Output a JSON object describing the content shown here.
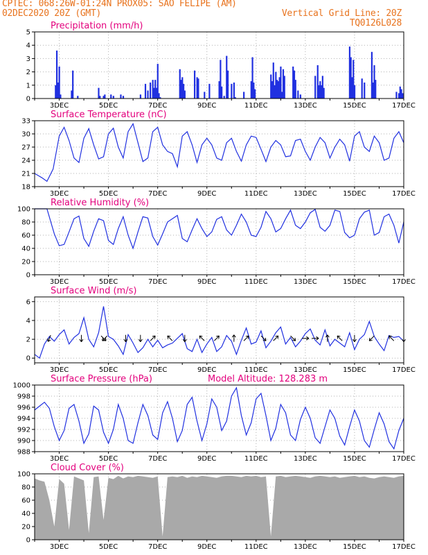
{
  "header": {
    "line1": "CPTEC:   068:26W-01:24N   PROX05: SAO FELIPE (AM)",
    "line2_left": "02DEC2020 20Z (GMT)",
    "line2_right": "Vertical Grid Line: 20Z",
    "line3_right": "TQ0126L028"
  },
  "colors": {
    "header": "#e8731e",
    "title": "#e3007d",
    "line": "#2030e0",
    "bar": "#2030e0",
    "cloud": "#a9a9a9"
  },
  "x_axis": {
    "start_day": 2,
    "end_day": 17,
    "tick_labels": [
      "3DEC",
      "5DEC",
      "7DEC",
      "9DEC",
      "11DEC",
      "13DEC",
      "15DEC",
      "17DEC"
    ]
  },
  "chart_data": [
    {
      "type": "bar",
      "title": "Precipitation (mm/h)",
      "ylim": [
        0,
        5
      ],
      "yticks": [
        0,
        1,
        2,
        3,
        4,
        5
      ],
      "x": [
        2.85,
        2.9,
        2.95,
        3.0,
        3.05,
        3.5,
        3.55,
        3.75,
        4.6,
        4.65,
        4.8,
        4.85,
        5.1,
        5.2,
        5.5,
        5.6,
        6.3,
        6.5,
        6.6,
        6.7,
        6.8,
        6.85,
        6.9,
        6.95,
        7.0,
        7.05,
        7.1,
        7.9,
        7.95,
        8.0,
        8.05,
        8.1,
        8.5,
        8.6,
        8.65,
        8.9,
        9.1,
        9.5,
        9.55,
        9.6,
        9.7,
        9.8,
        9.85,
        10.0,
        10.1,
        10.15,
        10.5,
        10.8,
        10.85,
        10.9,
        10.95,
        11.6,
        11.65,
        11.7,
        11.75,
        11.8,
        11.85,
        11.9,
        11.95,
        12.0,
        12.05,
        12.1,
        12.15,
        12.5,
        12.55,
        12.6,
        12.7,
        12.8,
        13.4,
        13.5,
        13.55,
        13.6,
        13.65,
        13.7,
        13.75,
        14.8,
        14.85,
        14.9,
        14.95,
        15.0,
        15.3,
        15.4,
        15.7,
        15.75,
        15.8,
        15.85,
        16.7,
        16.8,
        16.85,
        16.9,
        16.95
      ],
      "values": [
        1.0,
        3.6,
        1.2,
        2.4,
        0.3,
        0.6,
        2.1,
        0.2,
        0.8,
        0.2,
        0.2,
        0.3,
        0.3,
        0.2,
        0.3,
        0.2,
        0.3,
        1.1,
        0.6,
        1.2,
        1.4,
        0.8,
        1.4,
        0.8,
        2.6,
        0.4,
        0.1,
        2.2,
        1.4,
        1.6,
        1.1,
        0.6,
        2.1,
        1.6,
        1.5,
        0.5,
        1.1,
        1.3,
        2.9,
        0.9,
        0.2,
        3.2,
        2.1,
        1.1,
        1.2,
        0.1,
        0.5,
        1.3,
        3.1,
        1.2,
        0.7,
        1.8,
        1.3,
        2.7,
        1.0,
        2.0,
        1.4,
        1.3,
        1.6,
        2.4,
        0.5,
        2.2,
        1.7,
        2.4,
        2.1,
        1.4,
        0.6,
        0.3,
        1.7,
        2.5,
        1.0,
        1.3,
        1.0,
        1.7,
        0.8,
        3.9,
        3.1,
        1.6,
        2.9,
        1.0,
        1.5,
        1.2,
        3.5,
        1.2,
        2.5,
        1.4,
        0.5,
        0.4,
        0.9,
        0.7,
        0.4
      ]
    },
    {
      "type": "line",
      "title": "Surface Temperature (nC)",
      "ylim": [
        18,
        33
      ],
      "yticks": [
        18,
        21,
        24,
        27,
        30,
        33
      ],
      "x": [
        2.0,
        2.3,
        2.5,
        2.75,
        3.0,
        3.2,
        3.4,
        3.6,
        3.8,
        4.0,
        4.2,
        4.4,
        4.6,
        4.8,
        5.0,
        5.2,
        5.4,
        5.6,
        5.8,
        6.0,
        6.2,
        6.4,
        6.6,
        6.8,
        7.0,
        7.2,
        7.4,
        7.6,
        7.8,
        8.0,
        8.2,
        8.4,
        8.6,
        8.8,
        9.0,
        9.2,
        9.4,
        9.6,
        9.8,
        10.0,
        10.2,
        10.4,
        10.6,
        10.8,
        11.0,
        11.2,
        11.4,
        11.6,
        11.8,
        12.0,
        12.2,
        12.4,
        12.6,
        12.8,
        13.0,
        13.2,
        13.4,
        13.6,
        13.8,
        14.0,
        14.2,
        14.4,
        14.6,
        14.8,
        15.0,
        15.2,
        15.4,
        15.6,
        15.8,
        16.0,
        16.2,
        16.4,
        16.6,
        16.8,
        17.0
      ],
      "values": [
        21.0,
        20.0,
        19.2,
        22.0,
        29.5,
        31.5,
        28.5,
        24.5,
        23.5,
        29.0,
        31.2,
        27.5,
        24.3,
        24.8,
        30.0,
        31.3,
        27.0,
        24.5,
        30.5,
        32.3,
        28.0,
        23.7,
        24.5,
        30.5,
        31.5,
        27.5,
        26.0,
        25.5,
        22.5,
        29.5,
        30.5,
        27.5,
        23.5,
        27.5,
        29.0,
        27.5,
        24.5,
        24.0,
        28.0,
        29.0,
        26.0,
        23.8,
        27.5,
        29.5,
        29.2,
        26.5,
        23.7,
        27.0,
        28.5,
        27.5,
        24.8,
        25.0,
        28.5,
        28.8,
        26.0,
        24.0,
        27.0,
        29.2,
        28.0,
        24.5,
        27.0,
        28.8,
        27.5,
        23.8,
        29.5,
        30.5,
        27.0,
        26.0,
        29.5,
        28.0,
        24.0,
        24.5,
        29.0,
        30.5,
        28.0
      ]
    },
    {
      "type": "line",
      "title": "Relative Humidity (%)",
      "ylim": [
        0,
        100
      ],
      "yticks": [
        0,
        20,
        40,
        60,
        80,
        100
      ],
      "x": [
        2.0,
        2.3,
        2.5,
        2.8,
        3.0,
        3.2,
        3.4,
        3.6,
        3.8,
        4.0,
        4.2,
        4.4,
        4.6,
        4.8,
        5.0,
        5.2,
        5.4,
        5.6,
        5.8,
        6.0,
        6.2,
        6.4,
        6.6,
        6.8,
        7.0,
        7.2,
        7.4,
        7.6,
        7.8,
        8.0,
        8.2,
        8.4,
        8.6,
        8.8,
        9.0,
        9.2,
        9.4,
        9.6,
        9.8,
        10.0,
        10.2,
        10.4,
        10.6,
        10.8,
        11.0,
        11.2,
        11.4,
        11.6,
        11.8,
        12.0,
        12.2,
        12.4,
        12.6,
        12.8,
        13.0,
        13.2,
        13.4,
        13.6,
        13.8,
        14.0,
        14.2,
        14.4,
        14.6,
        14.8,
        15.0,
        15.2,
        15.4,
        15.6,
        15.8,
        16.0,
        16.2,
        16.4,
        16.6,
        16.8,
        17.0
      ],
      "values": [
        100,
        100,
        100,
        62,
        44,
        46,
        65,
        85,
        89,
        55,
        43,
        66,
        85,
        82,
        52,
        46,
        70,
        88,
        60,
        40,
        65,
        88,
        86,
        58,
        45,
        62,
        80,
        85,
        90,
        55,
        50,
        68,
        85,
        70,
        58,
        65,
        84,
        88,
        68,
        60,
        75,
        92,
        80,
        60,
        58,
        72,
        96,
        85,
        65,
        70,
        85,
        98,
        75,
        70,
        80,
        94,
        99,
        72,
        66,
        75,
        98,
        96,
        64,
        56,
        60,
        85,
        95,
        98,
        60,
        64,
        88,
        92,
        75,
        48,
        80
      ]
    },
    {
      "type": "line",
      "title": "Surface Wind (m/s)",
      "ylim": [
        -0.5,
        6.5
      ],
      "yticks": [
        0,
        2,
        4,
        6
      ],
      "x": [
        2.0,
        2.2,
        2.4,
        2.6,
        2.8,
        3.0,
        3.2,
        3.4,
        3.6,
        3.8,
        4.0,
        4.2,
        4.4,
        4.6,
        4.8,
        5.0,
        5.2,
        5.4,
        5.6,
        5.8,
        6.0,
        6.2,
        6.4,
        6.6,
        6.8,
        7.0,
        7.2,
        7.4,
        7.6,
        7.8,
        8.0,
        8.2,
        8.4,
        8.6,
        8.8,
        9.0,
        9.2,
        9.4,
        9.6,
        9.8,
        10.0,
        10.2,
        10.4,
        10.6,
        10.8,
        11.0,
        11.2,
        11.4,
        11.6,
        11.8,
        12.0,
        12.2,
        12.4,
        12.6,
        12.8,
        13.0,
        13.2,
        13.4,
        13.6,
        13.8,
        14.0,
        14.2,
        14.4,
        14.6,
        14.8,
        15.0,
        15.2,
        15.4,
        15.6,
        15.8,
        16.0,
        16.2,
        16.4,
        16.6,
        16.8,
        17.0
      ],
      "values": [
        0.4,
        0.0,
        1.5,
        2.3,
        1.8,
        2.5,
        3.0,
        1.5,
        2.2,
        2.6,
        4.3,
        2.0,
        1.2,
        2.7,
        5.5,
        2.3,
        2.0,
        1.3,
        0.4,
        2.5,
        1.6,
        0.6,
        1.1,
        2.0,
        1.2,
        1.9,
        1.1,
        1.4,
        1.6,
        2.1,
        2.6,
        1.0,
        0.7,
        2.0,
        0.6,
        1.5,
        2.2,
        0.7,
        1.2,
        2.4,
        1.8,
        0.4,
        1.9,
        3.2,
        1.5,
        1.7,
        2.9,
        1.1,
        1.8,
        2.7,
        3.3,
        1.5,
        2.2,
        1.2,
        1.8,
        2.6,
        3.1,
        1.9,
        1.4,
        3.0,
        1.3,
        2.0,
        1.6,
        1.2,
        2.7,
        0.9,
        2.0,
        2.5,
        3.9,
        2.3,
        1.5,
        0.8,
        2.4,
        2.2,
        2.3,
        1.8
      ],
      "wind_arrows": [
        {
          "x": 2.6,
          "dir": "SSW"
        },
        {
          "x": 3.9,
          "dir": "S"
        },
        {
          "x": 4.8,
          "dir": "SE"
        },
        {
          "x": 4.85,
          "dir": "SW"
        },
        {
          "x": 5.7,
          "dir": "S"
        },
        {
          "x": 6.3,
          "dir": "S"
        },
        {
          "x": 6.8,
          "dir": "NE"
        },
        {
          "x": 7.5,
          "dir": "NW"
        },
        {
          "x": 8.1,
          "dir": "S"
        },
        {
          "x": 8.8,
          "dir": "NW"
        },
        {
          "x": 9.4,
          "dir": "NE"
        },
        {
          "x": 10.1,
          "dir": "N"
        },
        {
          "x": 10.6,
          "dir": "NE"
        },
        {
          "x": 11.3,
          "dir": "SE"
        },
        {
          "x": 11.8,
          "dir": "NE"
        },
        {
          "x": 12.5,
          "dir": "SE"
        },
        {
          "x": 13.0,
          "dir": "E"
        },
        {
          "x": 13.4,
          "dir": "E"
        },
        {
          "x": 13.9,
          "dir": "N"
        },
        {
          "x": 14.4,
          "dir": "NW"
        },
        {
          "x": 15.0,
          "dir": "S"
        },
        {
          "x": 15.7,
          "dir": "SW"
        },
        {
          "x": 16.5,
          "dir": "NW"
        },
        {
          "x": 17.0,
          "dir": "S"
        }
      ]
    },
    {
      "type": "line",
      "title": "Surface Pressure (hPa)",
      "annotation": "Model Altitude: 128.283 m",
      "ylim": [
        988,
        1000
      ],
      "yticks": [
        988,
        990,
        992,
        994,
        996,
        998,
        1000
      ],
      "x": [
        2.0,
        2.2,
        2.4,
        2.6,
        2.8,
        3.0,
        3.2,
        3.4,
        3.6,
        3.8,
        4.0,
        4.2,
        4.4,
        4.6,
        4.8,
        5.0,
        5.2,
        5.4,
        5.6,
        5.8,
        6.0,
        6.2,
        6.4,
        6.6,
        6.8,
        7.0,
        7.2,
        7.4,
        7.6,
        7.8,
        8.0,
        8.2,
        8.4,
        8.6,
        8.8,
        9.0,
        9.2,
        9.4,
        9.6,
        9.8,
        10.0,
        10.2,
        10.4,
        10.6,
        10.8,
        11.0,
        11.2,
        11.4,
        11.6,
        11.8,
        12.0,
        12.2,
        12.4,
        12.6,
        12.8,
        13.0,
        13.2,
        13.4,
        13.6,
        13.8,
        14.0,
        14.2,
        14.4,
        14.6,
        14.8,
        15.0,
        15.2,
        15.4,
        15.6,
        15.8,
        16.0,
        16.2,
        16.4,
        16.6,
        16.8,
        17.0
      ],
      "values": [
        995.5,
        996.2,
        996.9,
        995.8,
        992.5,
        990.0,
        991.8,
        995.8,
        996.5,
        993.5,
        989.5,
        991.2,
        996.2,
        995.5,
        991.5,
        989.5,
        992.0,
        996.5,
        994.0,
        990.0,
        989.5,
        993.2,
        996.5,
        994.5,
        991.0,
        990.2,
        995.0,
        997.0,
        994.0,
        989.8,
        991.8,
        996.5,
        997.8,
        993.5,
        990.0,
        993.0,
        997.5,
        996.0,
        991.8,
        993.5,
        998.0,
        999.5,
        994.5,
        991.0,
        993.2,
        997.5,
        998.5,
        994.5,
        990.0,
        992.2,
        996.5,
        995.0,
        991.0,
        990.0,
        993.8,
        996.0,
        994.0,
        990.5,
        989.5,
        992.5,
        995.5,
        994.0,
        990.8,
        989.2,
        992.5,
        995.5,
        993.5,
        990.0,
        988.8,
        992.0,
        995.0,
        993.0,
        989.8,
        988.5,
        991.8,
        994.0
      ]
    },
    {
      "type": "area",
      "title": "Cloud Cover (%)",
      "ylim": [
        0,
        100
      ],
      "yticks": [
        0,
        20,
        40,
        60,
        80,
        100
      ],
      "x": [
        2.0,
        2.2,
        2.4,
        2.6,
        2.8,
        3.0,
        3.2,
        3.4,
        3.6,
        3.8,
        4.0,
        4.2,
        4.4,
        4.6,
        4.8,
        5.0,
        5.2,
        5.4,
        5.6,
        5.8,
        6.0,
        6.2,
        6.4,
        6.6,
        6.8,
        7.0,
        7.2,
        7.4,
        7.6,
        7.8,
        8.0,
        8.2,
        8.4,
        8.6,
        8.8,
        9.0,
        9.2,
        9.4,
        9.6,
        9.8,
        10.0,
        10.2,
        10.4,
        10.6,
        10.8,
        11.0,
        11.2,
        11.4,
        11.6,
        11.8,
        12.0,
        12.2,
        12.4,
        12.6,
        12.8,
        13.0,
        13.2,
        13.4,
        13.6,
        13.8,
        14.0,
        14.2,
        14.4,
        14.6,
        14.8,
        15.0,
        15.2,
        15.4,
        15.6,
        15.8,
        16.0,
        16.2,
        16.4,
        16.6,
        16.8,
        17.0
      ],
      "values": [
        93,
        90,
        88,
        60,
        20,
        92,
        85,
        15,
        96,
        93,
        90,
        10,
        95,
        96,
        30,
        94,
        92,
        97,
        93,
        96,
        95,
        97,
        96,
        95,
        94,
        96,
        5,
        95,
        96,
        95,
        97,
        94,
        96,
        95,
        97,
        96,
        95,
        94,
        96,
        97,
        97,
        96,
        95,
        97,
        96,
        97,
        95,
        96,
        5,
        96,
        97,
        95,
        96,
        97,
        96,
        95,
        94,
        96,
        97,
        96,
        95,
        96,
        94,
        95,
        96,
        97,
        95,
        96,
        94,
        93,
        95,
        96,
        95,
        94,
        96,
        97
      ]
    }
  ]
}
